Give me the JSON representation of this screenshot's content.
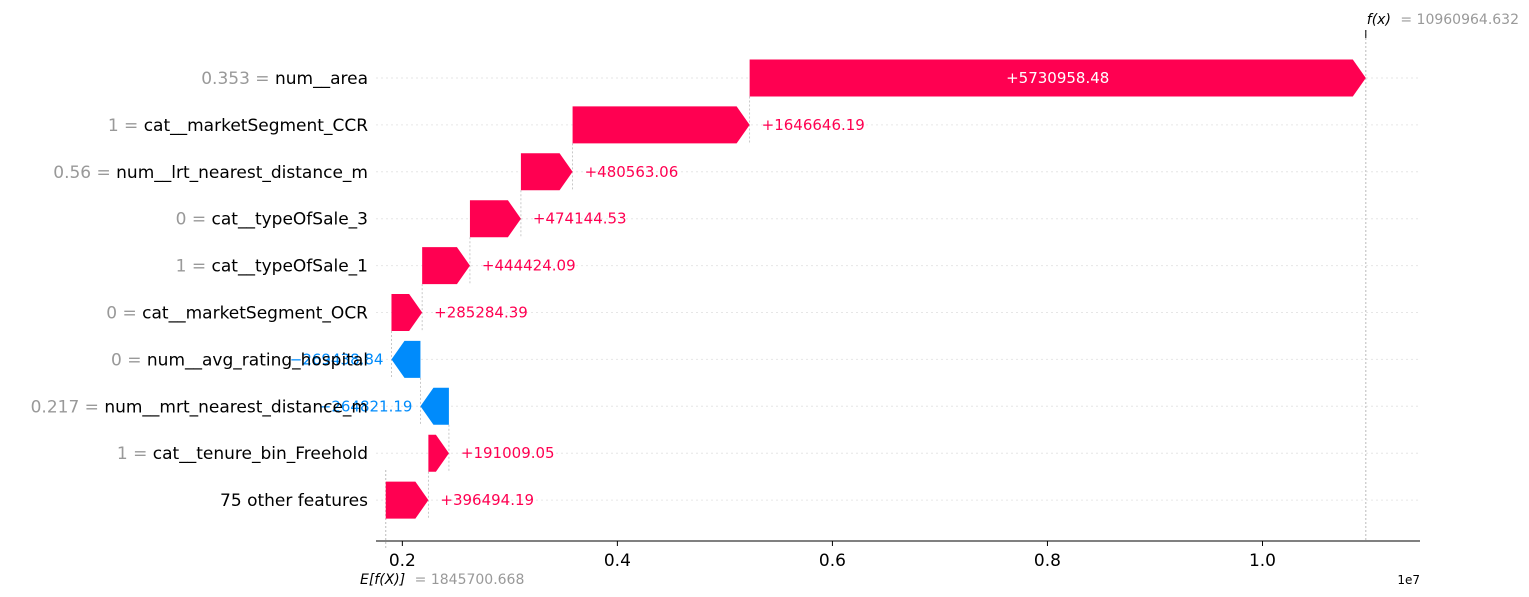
{
  "colors": {
    "positive": "#ff0051",
    "negative": "#008bfb",
    "gray": "#999999"
  },
  "chart_data": {
    "type": "waterfall",
    "x_axis": {
      "ticks": [
        0.2,
        0.4,
        0.6,
        0.8,
        1.0
      ],
      "tick_labels": [
        "0.2",
        "0.4",
        "0.6",
        "0.8",
        "1.0"
      ],
      "multiplier_label": "1e7",
      "range": [
        0.1755,
        1.1465
      ]
    },
    "base_value": 1845700.668,
    "base_value_label": "= 1845700.668",
    "base_value_prefix": "E[f(X)]",
    "output_value": 10960964.632,
    "output_value_label": "= 10960964.632",
    "output_value_prefix": "f(x)",
    "features": [
      {
        "value": "0.353 =",
        "name": "num__area",
        "contribution": 5730958.48,
        "label": "+5730958.48"
      },
      {
        "value": "1 =",
        "name": "cat__marketSegment_CCR",
        "contribution": 1646646.19,
        "label": "+1646646.19"
      },
      {
        "value": "0.56 =",
        "name": "num__lrt_nearest_distance_m",
        "contribution": 480563.06,
        "label": "+480563.06"
      },
      {
        "value": "0 =",
        "name": "cat__typeOfSale_3",
        "contribution": 474144.53,
        "label": "+474144.53"
      },
      {
        "value": "1 =",
        "name": "cat__typeOfSale_1",
        "contribution": 444424.09,
        "label": "+444424.09"
      },
      {
        "value": "0 =",
        "name": "cat__marketSegment_OCR",
        "contribution": 285284.39,
        "label": "+285284.39"
      },
      {
        "value": "0 =",
        "name": "num__avg_rating_hospital",
        "contribution": -269438.84,
        "label": "−269438.84"
      },
      {
        "value": "0.217 =",
        "name": "num__mrt_nearest_distance_m",
        "contribution": -264821.19,
        "label": "−264821.19"
      },
      {
        "value": "1 =",
        "name": "cat__tenure_bin_Freehold",
        "contribution": 191009.05,
        "label": "+191009.05"
      },
      {
        "value": "",
        "name": "75 other features",
        "contribution": 396494.19,
        "label": "+396494.19"
      }
    ]
  }
}
